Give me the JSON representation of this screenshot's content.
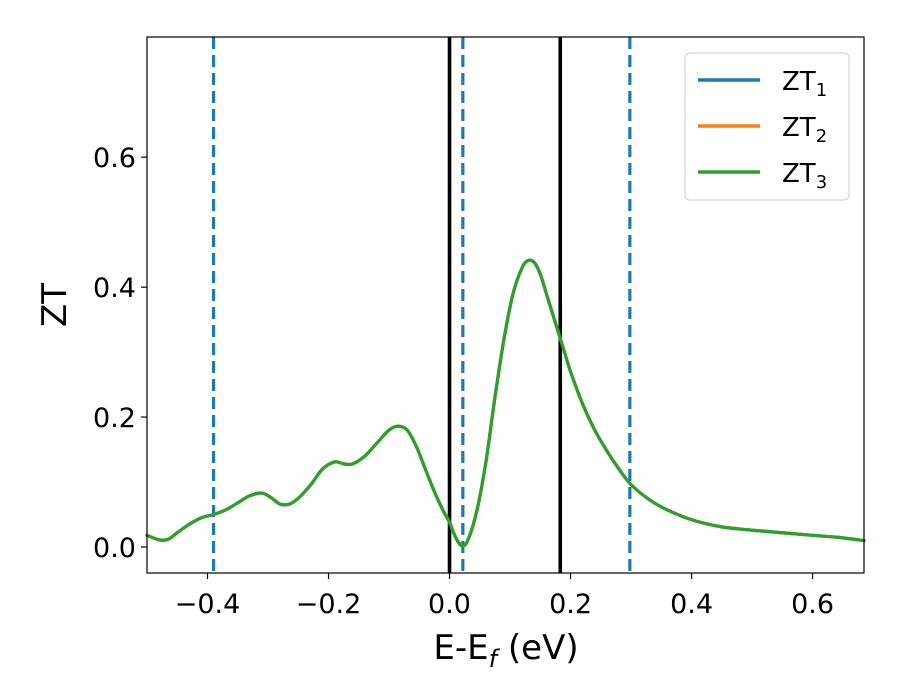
{
  "chart_data": {
    "type": "line",
    "xlabel": "E-E",
    "xlabel_sub": "f",
    "xlabel_unit": " (eV)",
    "ylabel": "ZT",
    "xlim": [
      -0.5,
      0.685
    ],
    "ylim": [
      -0.04,
      0.785
    ],
    "xticks": [
      -0.4,
      -0.2,
      0.0,
      0.2,
      0.4,
      0.6
    ],
    "xtick_labels": [
      "−0.4",
      "−0.2",
      "0.0",
      "0.2",
      "0.4",
      "0.6"
    ],
    "yticks": [
      0.0,
      0.2,
      0.4,
      0.6
    ],
    "ytick_labels": [
      "0.0",
      "0.2",
      "0.4",
      "0.6"
    ],
    "grid": false,
    "legend_position": "top-right",
    "series": [
      {
        "name": "ZT",
        "sub": "1",
        "color": "#1f77b4",
        "x": [
          -0.5,
          -0.48,
          -0.465,
          -0.45,
          -0.43,
          -0.41,
          -0.39,
          -0.37,
          -0.35,
          -0.33,
          -0.31,
          -0.295,
          -0.28,
          -0.265,
          -0.25,
          -0.23,
          -0.21,
          -0.19,
          -0.175,
          -0.16,
          -0.14,
          -0.12,
          -0.1,
          -0.085,
          -0.07,
          -0.055,
          -0.04,
          -0.025,
          -0.01,
          0.0,
          0.01,
          0.02,
          0.03,
          0.045,
          0.06,
          0.075,
          0.09,
          0.105,
          0.12,
          0.13,
          0.14,
          0.15,
          0.16,
          0.17,
          0.18,
          0.19,
          0.2,
          0.22,
          0.24,
          0.26,
          0.28,
          0.3,
          0.33,
          0.36,
          0.4,
          0.45,
          0.5,
          0.55,
          0.6,
          0.64,
          0.685
        ],
        "y": [
          0.018,
          0.011,
          0.012,
          0.022,
          0.035,
          0.045,
          0.05,
          0.057,
          0.068,
          0.079,
          0.083,
          0.076,
          0.066,
          0.066,
          0.075,
          0.095,
          0.12,
          0.131,
          0.128,
          0.128,
          0.14,
          0.16,
          0.18,
          0.186,
          0.18,
          0.155,
          0.12,
          0.085,
          0.055,
          0.038,
          0.015,
          0.002,
          0.01,
          0.055,
          0.13,
          0.23,
          0.32,
          0.39,
          0.43,
          0.441,
          0.438,
          0.42,
          0.39,
          0.36,
          0.33,
          0.3,
          0.27,
          0.22,
          0.18,
          0.148,
          0.12,
          0.096,
          0.073,
          0.057,
          0.042,
          0.031,
          0.026,
          0.022,
          0.018,
          0.015,
          0.01
        ]
      },
      {
        "name": "ZT",
        "sub": "2",
        "color": "#ff7f0e",
        "x": [
          -0.5,
          -0.48,
          -0.465,
          -0.45,
          -0.43,
          -0.41,
          -0.39,
          -0.37,
          -0.35,
          -0.33,
          -0.31,
          -0.295,
          -0.28,
          -0.265,
          -0.25,
          -0.23,
          -0.21,
          -0.19,
          -0.175,
          -0.16,
          -0.14,
          -0.12,
          -0.1,
          -0.085,
          -0.07,
          -0.055,
          -0.04,
          -0.025,
          -0.01,
          0.0,
          0.01,
          0.02,
          0.03,
          0.045,
          0.06,
          0.075,
          0.09,
          0.105,
          0.12,
          0.13,
          0.14,
          0.15,
          0.16,
          0.17,
          0.18,
          0.19,
          0.2,
          0.22,
          0.24,
          0.26,
          0.28,
          0.3,
          0.33,
          0.36,
          0.4,
          0.45,
          0.5,
          0.55,
          0.6,
          0.64,
          0.685
        ],
        "y": [
          0.018,
          0.011,
          0.012,
          0.022,
          0.035,
          0.045,
          0.05,
          0.057,
          0.068,
          0.079,
          0.083,
          0.076,
          0.066,
          0.066,
          0.075,
          0.095,
          0.12,
          0.131,
          0.128,
          0.128,
          0.14,
          0.16,
          0.18,
          0.186,
          0.18,
          0.155,
          0.12,
          0.085,
          0.055,
          0.038,
          0.015,
          0.002,
          0.01,
          0.055,
          0.13,
          0.23,
          0.32,
          0.39,
          0.43,
          0.441,
          0.438,
          0.42,
          0.39,
          0.36,
          0.33,
          0.3,
          0.27,
          0.22,
          0.18,
          0.148,
          0.12,
          0.096,
          0.073,
          0.057,
          0.042,
          0.031,
          0.026,
          0.022,
          0.018,
          0.015,
          0.01
        ]
      },
      {
        "name": "ZT",
        "sub": "3",
        "color": "#2ca02c",
        "x": [
          -0.5,
          -0.48,
          -0.465,
          -0.45,
          -0.43,
          -0.41,
          -0.39,
          -0.37,
          -0.35,
          -0.33,
          -0.31,
          -0.295,
          -0.28,
          -0.265,
          -0.25,
          -0.23,
          -0.21,
          -0.19,
          -0.175,
          -0.16,
          -0.14,
          -0.12,
          -0.1,
          -0.085,
          -0.07,
          -0.055,
          -0.04,
          -0.025,
          -0.01,
          0.0,
          0.01,
          0.02,
          0.03,
          0.045,
          0.06,
          0.075,
          0.09,
          0.105,
          0.12,
          0.13,
          0.14,
          0.15,
          0.16,
          0.17,
          0.18,
          0.19,
          0.2,
          0.22,
          0.24,
          0.26,
          0.28,
          0.3,
          0.33,
          0.36,
          0.4,
          0.45,
          0.5,
          0.55,
          0.6,
          0.64,
          0.685
        ],
        "y": [
          0.018,
          0.011,
          0.012,
          0.022,
          0.035,
          0.045,
          0.05,
          0.057,
          0.068,
          0.079,
          0.083,
          0.076,
          0.066,
          0.066,
          0.075,
          0.095,
          0.12,
          0.131,
          0.128,
          0.128,
          0.14,
          0.16,
          0.18,
          0.186,
          0.18,
          0.155,
          0.12,
          0.085,
          0.055,
          0.038,
          0.015,
          0.002,
          0.01,
          0.055,
          0.13,
          0.23,
          0.32,
          0.39,
          0.43,
          0.441,
          0.438,
          0.42,
          0.39,
          0.36,
          0.33,
          0.3,
          0.27,
          0.22,
          0.18,
          0.148,
          0.12,
          0.096,
          0.073,
          0.057,
          0.042,
          0.031,
          0.026,
          0.022,
          0.018,
          0.015,
          0.01
        ]
      }
    ],
    "vlines": [
      {
        "x": -0.39,
        "color": "#1f77b4",
        "style": "dashed"
      },
      {
        "x": 0.022,
        "color": "#1f77b4",
        "style": "dashed"
      },
      {
        "x": 0.298,
        "color": "#1f77b4",
        "style": "dashed"
      },
      {
        "x": 0.0,
        "color": "#000000",
        "style": "solid"
      },
      {
        "x": 0.183,
        "color": "#000000",
        "style": "solid"
      }
    ]
  }
}
